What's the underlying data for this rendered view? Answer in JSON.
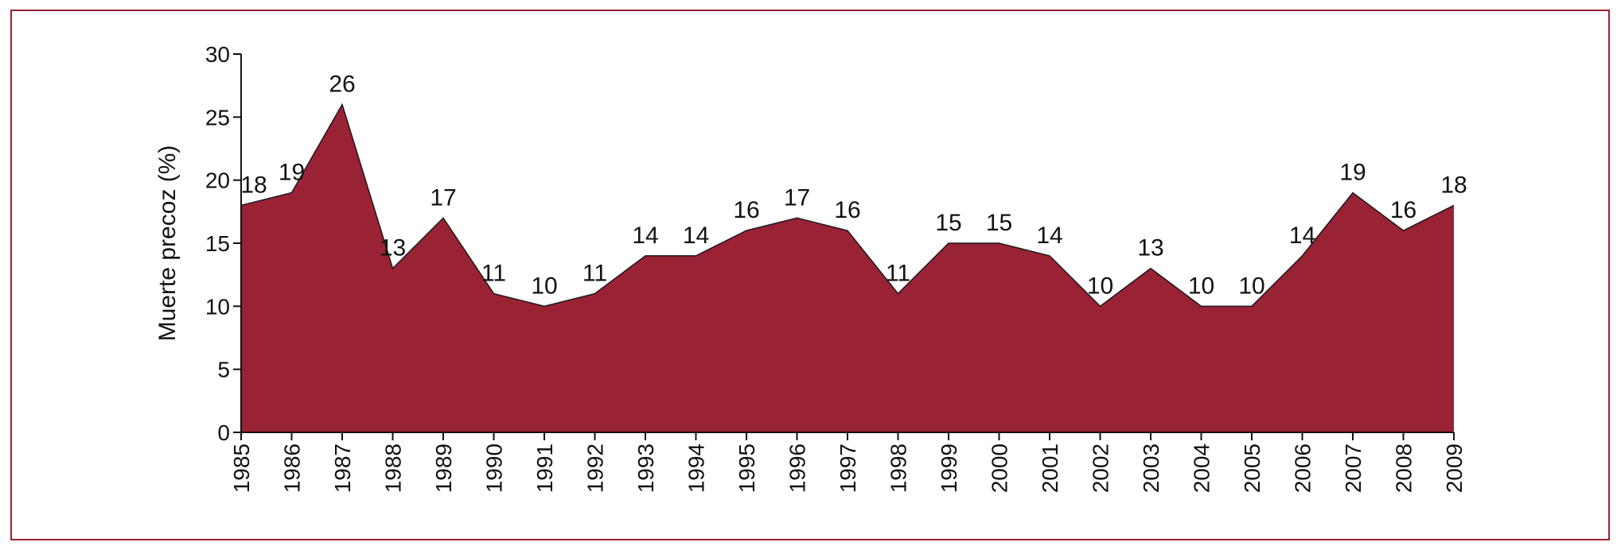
{
  "chart_data": {
    "type": "area",
    "title": "",
    "xlabel": "",
    "ylabel": "Muerte precoz (%)",
    "ylim": [
      0,
      30
    ],
    "y_ticks": [
      "0",
      "5",
      "10",
      "15",
      "20",
      "25",
      "30"
    ],
    "x": [
      "1985",
      "1986",
      "1987",
      "1988",
      "1989",
      "1990",
      "1991",
      "1992",
      "1993",
      "1994",
      "1995",
      "1996",
      "1997",
      "1998",
      "1999",
      "2000",
      "2001",
      "2002",
      "2003",
      "2004",
      "2005",
      "2006",
      "2007",
      "2008",
      "2009"
    ],
    "values": [
      18,
      19,
      26,
      13,
      17,
      11,
      10,
      11,
      14,
      14,
      16,
      17,
      16,
      11,
      15,
      15,
      14,
      10,
      13,
      10,
      10,
      14,
      19,
      16,
      18
    ],
    "data_labels": [
      "18",
      "19",
      "26",
      "13",
      "17",
      "11",
      "10",
      "11",
      "14",
      "14",
      "16",
      "17",
      "16",
      "11",
      "15",
      "15",
      "14",
      "10",
      "13",
      "10",
      "10",
      "14",
      "19",
      "16",
      "18"
    ],
    "fill_color": "#9a2235",
    "grid": false,
    "legend": "none"
  }
}
